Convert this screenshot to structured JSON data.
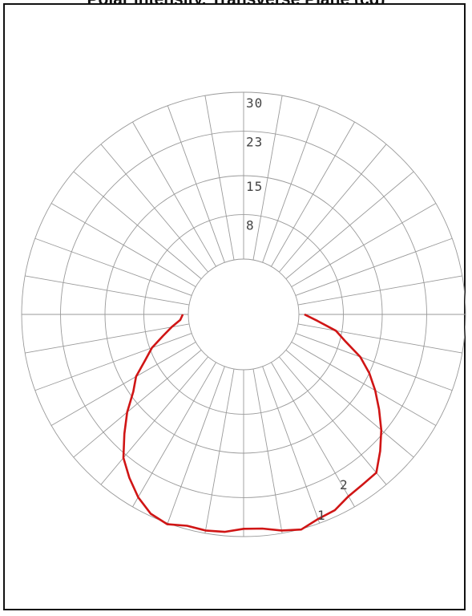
{
  "title": "Polar intensity, Transverse Plane (cd)",
  "chart_data": {
    "type": "polar",
    "radial_ticks": [
      8,
      15,
      23,
      30
    ],
    "radial_labels": [
      "8",
      "15",
      "23",
      "30"
    ],
    "rmax": 30,
    "angular_step_deg": 10,
    "grid": true,
    "zone_labels": [
      "1",
      "2"
    ],
    "colors": {
      "curve": "#d01515",
      "grid": "#9a9a9a"
    },
    "series": [
      {
        "angles_deg": [
          -90,
          -85,
          -80,
          -75,
          -70,
          -65,
          -60,
          -55,
          -50,
          -45,
          -40,
          -35,
          -30,
          -25,
          -20,
          -15,
          -10,
          -5,
          0,
          5,
          10,
          15,
          20,
          25,
          30,
          35,
          40,
          45,
          50,
          55,
          60,
          65,
          70,
          75,
          80,
          85,
          90
        ],
        "values": [
          1.0,
          1.5,
          3.2,
          5.1,
          7.6,
          9.6,
          12.4,
          14.3,
          17.4,
          20.4,
          23.7,
          25.9,
          28.0,
          29.6,
          30.2,
          29.4,
          29.5,
          29.3,
          28.6,
          28.7,
          29.5,
          30.1,
          29.2,
          28.9,
          27.8,
          27.4,
          27.2,
          24.8,
          22.4,
          19.8,
          17.4,
          15.0,
          12.4,
          9.1,
          6.9,
          3.4,
          1.0
        ]
      }
    ]
  }
}
